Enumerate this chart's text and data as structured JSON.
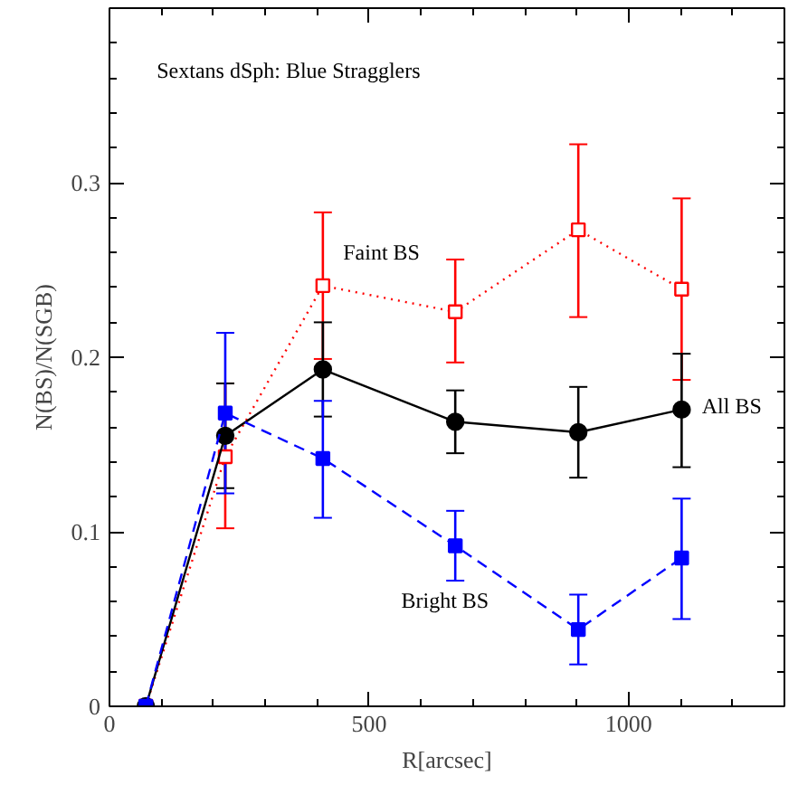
{
  "chart_data": {
    "type": "line",
    "title": "Sextans dSph: Blue Stragglers",
    "xlabel": "R[arcsec]",
    "ylabel": "N(BS)/N(SGB)",
    "x": [
      70,
      223,
      411,
      666,
      903,
      1102
    ],
    "xlim": [
      0,
      1300
    ],
    "ylim": [
      0,
      0.4
    ],
    "xticks": [
      0,
      500,
      1000
    ],
    "yticks": [
      0,
      0.1,
      0.2,
      0.3
    ],
    "grid": false,
    "series": [
      {
        "name": "Faint BS",
        "color": "#ff0000",
        "marker": "square",
        "line_style": "dotted",
        "values": [
          0,
          0.143,
          0.241,
          0.226,
          0.273,
          0.239
        ],
        "errors": [
          null,
          [
            0.102,
            0.185
          ],
          [
            0.199,
            0.283
          ],
          [
            0.197,
            0.256
          ],
          [
            0.223,
            0.322
          ],
          [
            0.187,
            0.291
          ]
        ]
      },
      {
        "name": "All BS",
        "color": "#000000",
        "marker": "circle",
        "line_style": "solid",
        "values": [
          0,
          0.155,
          0.193,
          0.163,
          0.157,
          0.17
        ],
        "errors": [
          null,
          [
            0.125,
            0.185
          ],
          [
            0.166,
            0.22
          ],
          [
            0.145,
            0.181
          ],
          [
            0.131,
            0.183
          ],
          [
            0.137,
            0.202
          ]
        ]
      },
      {
        "name": "Bright BS",
        "color": "#0000ff",
        "marker": "square",
        "line_style": "dashed",
        "values": [
          0,
          0.168,
          0.142,
          0.092,
          0.044,
          0.085
        ],
        "errors": [
          null,
          [
            0.122,
            0.214
          ],
          [
            0.108,
            0.175
          ],
          [
            0.072,
            0.112
          ],
          [
            0.024,
            0.064
          ],
          [
            0.05,
            0.119
          ]
        ]
      }
    ]
  }
}
